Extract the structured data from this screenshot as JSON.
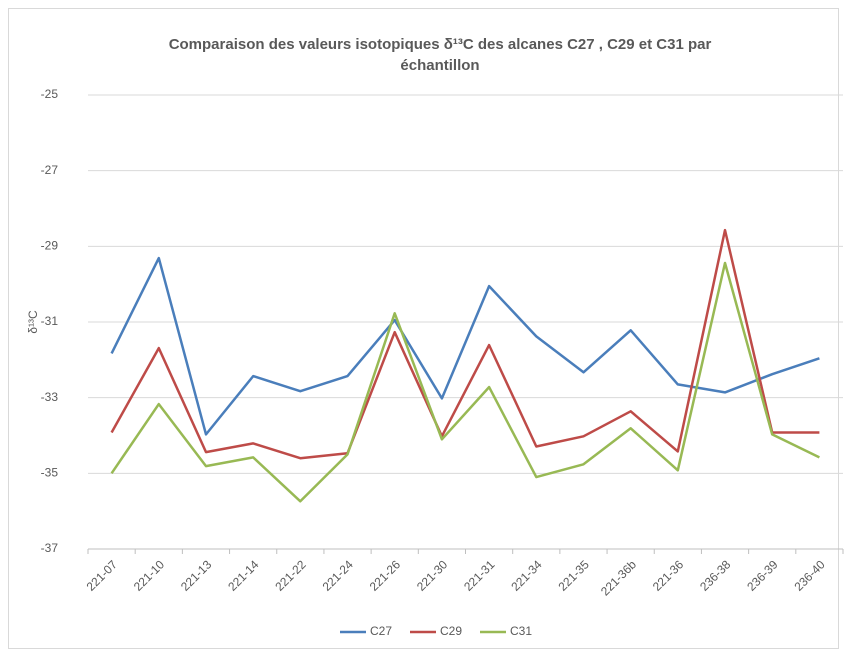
{
  "chart_data": {
    "type": "line",
    "title_lines": [
      "Comparaison des valeurs isotopiques δ¹³C des alcanes C27 , C29 et C31 par",
      "échantillon"
    ],
    "y_label": "δ¹³C",
    "categories": [
      "221-07",
      "221-10",
      "221-13",
      "221-14",
      "221-22",
      "221-24",
      "221-26",
      "221-30",
      "221-31",
      "221-34",
      "221-35",
      "221-36b",
      "221-36",
      "236-38",
      "236-39",
      "236-40"
    ],
    "series": [
      {
        "name": "C27",
        "color": "#4a7ebb",
        "values": [
          -31.83,
          -29.31,
          -33.97,
          -32.43,
          -32.83,
          -32.43,
          -30.95,
          -33.02,
          -30.05,
          -31.38,
          -32.33,
          -31.22,
          -32.65,
          -32.86,
          -32.38,
          -31.96
        ]
      },
      {
        "name": "C29",
        "color": "#be4b48",
        "values": [
          -33.92,
          -31.69,
          -34.44,
          -34.21,
          -34.6,
          -34.47,
          -31.27,
          -34.02,
          -31.61,
          -34.29,
          -34.02,
          -33.36,
          -34.42,
          -28.57,
          -33.92,
          -33.92
        ]
      },
      {
        "name": "C31",
        "color": "#98b954",
        "values": [
          -35.0,
          -33.17,
          -34.81,
          -34.58,
          -35.74,
          -34.5,
          -30.77,
          -34.1,
          -32.72,
          -35.1,
          -34.76,
          -33.81,
          -34.92,
          -29.44,
          -33.97,
          -34.58
        ]
      }
    ],
    "ylim": [
      -37,
      -25
    ],
    "yticks": [
      -37,
      -35,
      -33,
      -31,
      -29,
      -27,
      -25
    ],
    "grid": true,
    "legend": "bottom"
  }
}
